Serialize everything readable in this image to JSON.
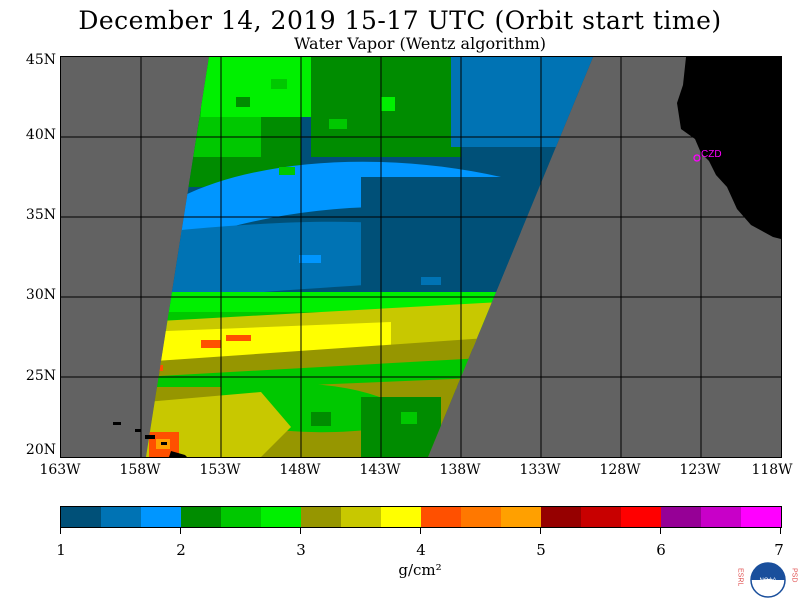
{
  "title": "December 14, 2019  15-17 UTC  (Orbit start time)",
  "subtitle": "Water Vapor (Wentz algorithm)",
  "map": {
    "lon_range": [
      -163,
      -118
    ],
    "lat_range": [
      20,
      45
    ],
    "lat_ticks": [
      "45N",
      "40N",
      "35N",
      "30N",
      "25N",
      "20N"
    ],
    "lon_ticks": [
      "163W",
      "158W",
      "153W",
      "148W",
      "143W",
      "138W",
      "133W",
      "128W",
      "123W",
      "118W"
    ],
    "station_label": "CZD",
    "no_data_color": "#626262",
    "land_color": "#000000",
    "grid_color": "#000000"
  },
  "colorbar": {
    "min": 1,
    "max": 7,
    "tick_labels": [
      "1",
      "2",
      "3",
      "4",
      "5",
      "6",
      "7"
    ],
    "colors": [
      "#005078",
      "#0073b4",
      "#0096ff",
      "#008c00",
      "#00c800",
      "#00f000",
      "#969600",
      "#c8c800",
      "#ffff00",
      "#ff5000",
      "#ff7800",
      "#ffa000",
      "#960000",
      "#c80000",
      "#ff0000",
      "#960096",
      "#c800c8",
      "#ff00ff"
    ],
    "units": "g/cm²"
  },
  "logo": {
    "left_letters": "ESRL",
    "right_letters": "PSD",
    "center_text": "NOAA"
  }
}
